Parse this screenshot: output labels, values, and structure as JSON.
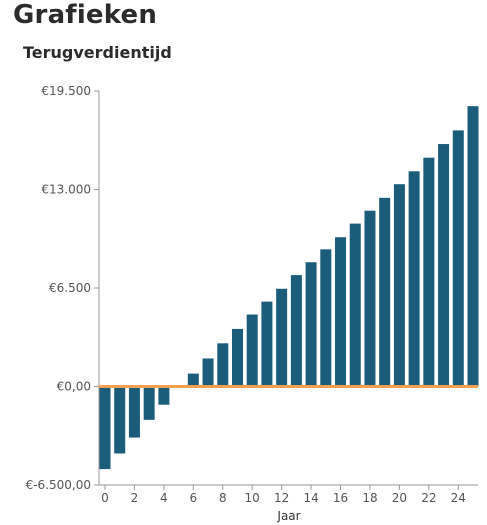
{
  "page": {
    "heading": "Grafieken"
  },
  "chart_data": {
    "type": "bar",
    "title": "Terugverdientijd",
    "xlabel": "Jaar",
    "ylabel": "",
    "x": [
      0,
      1,
      2,
      3,
      4,
      5,
      6,
      7,
      8,
      9,
      10,
      11,
      12,
      13,
      14,
      15,
      16,
      17,
      18,
      19,
      20,
      21,
      22,
      23,
      24,
      25
    ],
    "values": [
      -5450,
      -4420,
      -3370,
      -2200,
      -1200,
      -100,
      850,
      1850,
      2850,
      3800,
      4750,
      5600,
      6450,
      7350,
      8200,
      9050,
      9850,
      10750,
      11600,
      12450,
      13350,
      14200,
      15100,
      16000,
      16900,
      18500
    ],
    "ylim": [
      -6500,
      19500
    ],
    "yticks": [
      -6500,
      0,
      6500,
      13000,
      19500
    ],
    "ytick_labels": [
      "€-6.500,00",
      "€0,00",
      "€6.500",
      "€13.000",
      "€19.500"
    ],
    "xticks": [
      0,
      2,
      4,
      6,
      8,
      10,
      12,
      14,
      16,
      18,
      20,
      22,
      24
    ],
    "xtick_labels": [
      "0",
      "2",
      "4",
      "6",
      "8",
      "10",
      "12",
      "14",
      "16",
      "18",
      "20",
      "22",
      "24"
    ],
    "bar_color": "#1a5c7a",
    "zero_line_color": "#f0a050",
    "axis_color": "#999999",
    "grid": false
  }
}
